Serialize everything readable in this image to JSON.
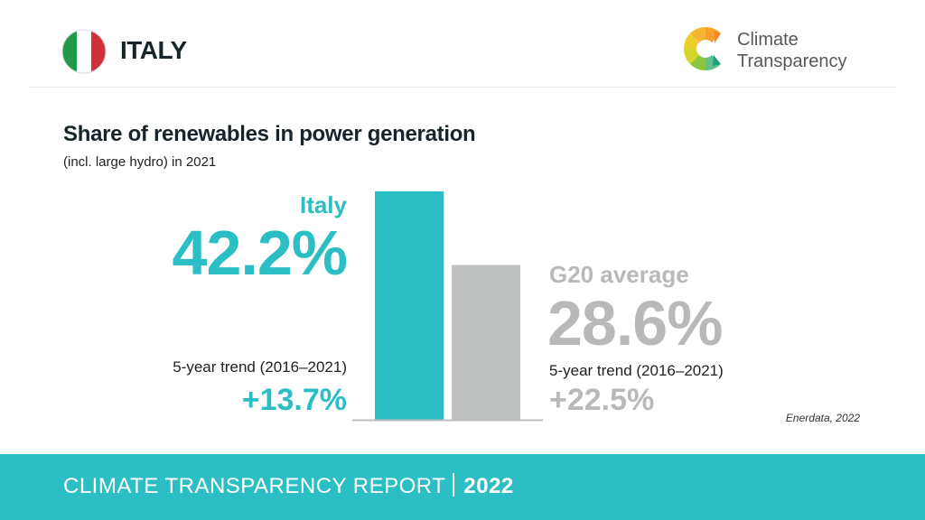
{
  "header": {
    "country": "ITALY",
    "brand_line1": "Climate",
    "brand_line2": "Transparency"
  },
  "colors": {
    "accent": "#2bbec4",
    "secondary": "#bfc1c1",
    "baseline": "#bdbdbd"
  },
  "labels": {
    "italy_name": "Italy",
    "italy_value": "42.2%",
    "italy_trend_label": "5-year trend (2016–2021)",
    "italy_trend_value": "+13.7%",
    "g20_name": "G20 average",
    "g20_value": "28.6%",
    "g20_trend_label": "5-year trend (2016–2021)",
    "g20_trend_value": "+22.5%",
    "source": "Enerdata, 2022"
  },
  "footer": {
    "report": "CLIMATE TRANSPARENCY REPORT",
    "year": "2022"
  },
  "chart_data": {
    "type": "bar",
    "title": "Share of renewables in power generation",
    "subtitle": "(incl. large hydro) in 2021",
    "categories": [
      "Italy",
      "G20 average"
    ],
    "values": [
      42.2,
      28.6
    ],
    "unit": "%",
    "trend_5yr": {
      "period": "2016–2021",
      "values": [
        13.7,
        22.5
      ]
    },
    "xlabel": "",
    "ylabel": "",
    "ylim": [
      0,
      42.2
    ],
    "grid": false,
    "legend": "none",
    "source": "Enerdata, 2022"
  }
}
